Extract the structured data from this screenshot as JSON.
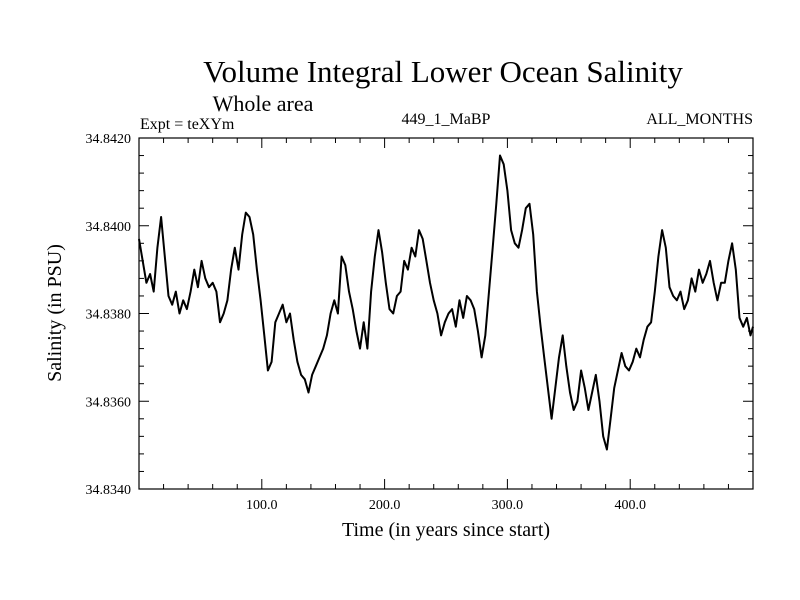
{
  "chart_data": {
    "type": "line",
    "title": "Volume Integral Lower Ocean Salinity",
    "subtitle": "Whole area",
    "annotations": {
      "left": "Expt = teXYm",
      "center": "449_1_MaBP",
      "right": "ALL_MONTHS"
    },
    "xlabel": "Time (in years since start)",
    "ylabel": "Salinity (in PSU)",
    "xlim": [
      0,
      500
    ],
    "ylim": [
      34.834,
      34.842
    ],
    "x_ticks": [
      100,
      200,
      300,
      400
    ],
    "x_tick_labels": [
      "100.0",
      "200.0",
      "300.0",
      "400.0"
    ],
    "y_ticks": [
      34.834,
      34.836,
      34.838,
      34.84,
      34.842
    ],
    "y_tick_labels": [
      "34.8340",
      "34.8360",
      "34.8380",
      "34.8400",
      "34.8420"
    ],
    "grid": false,
    "line_color": "#000000",
    "series": [
      {
        "x": [
          0,
          3,
          6,
          9,
          12,
          15,
          18,
          21,
          24,
          27,
          30,
          33,
          36,
          39,
          42,
          45,
          48,
          51,
          54,
          57,
          60,
          63,
          66,
          69,
          72,
          75,
          78,
          81,
          84,
          87,
          90,
          93,
          96,
          99,
          102,
          105,
          108,
          111,
          114,
          117,
          120,
          123,
          126,
          129,
          132,
          135,
          138,
          141,
          144,
          147,
          150,
          153,
          156,
          159,
          162,
          165,
          168,
          171,
          174,
          177,
          180,
          183,
          186,
          189,
          192,
          195,
          198,
          201,
          204,
          207,
          210,
          213,
          216,
          219,
          222,
          225,
          228,
          231,
          234,
          237,
          240,
          243,
          246,
          249,
          252,
          255,
          258,
          261,
          264,
          267,
          270,
          273,
          276,
          279,
          282,
          285,
          288,
          291,
          294,
          297,
          300,
          303,
          306,
          309,
          312,
          315,
          318,
          321,
          324,
          327,
          330,
          333,
          336,
          339,
          342,
          345,
          348,
          351,
          354,
          357,
          360,
          363,
          366,
          369,
          372,
          375,
          378,
          381,
          384,
          387,
          390,
          393,
          396,
          399,
          402,
          405,
          408,
          411,
          414,
          417,
          420,
          423,
          426,
          429,
          432,
          435,
          438,
          441,
          444,
          447,
          450,
          453,
          456,
          459,
          462,
          465,
          468,
          471,
          474,
          477,
          480,
          483,
          486,
          489,
          492,
          495,
          498,
          500
        ],
        "values": [
          34.8397,
          34.8392,
          34.8387,
          34.8389,
          34.8385,
          34.8395,
          34.8402,
          34.8393,
          34.8384,
          34.8382,
          34.8385,
          34.838,
          34.8383,
          34.8381,
          34.8385,
          34.839,
          34.8386,
          34.8392,
          34.8388,
          34.8386,
          34.8387,
          34.8385,
          34.8378,
          34.838,
          34.8383,
          34.839,
          34.8395,
          34.839,
          34.8398,
          34.8403,
          34.8402,
          34.8398,
          34.839,
          34.8383,
          34.8375,
          34.8367,
          34.8369,
          34.8378,
          34.838,
          34.8382,
          34.8378,
          34.838,
          34.8374,
          34.8369,
          34.8366,
          34.8365,
          34.8362,
          34.8366,
          34.8368,
          34.837,
          34.8372,
          34.8375,
          34.838,
          34.8383,
          34.838,
          34.8393,
          34.8391,
          34.8385,
          34.8381,
          34.8376,
          34.8372,
          34.8378,
          34.8372,
          34.8385,
          34.8393,
          34.8399,
          34.8394,
          34.8387,
          34.8381,
          34.838,
          34.8384,
          34.8385,
          34.8392,
          34.839,
          34.8395,
          34.8393,
          34.8399,
          34.8397,
          34.8392,
          34.8387,
          34.8383,
          34.838,
          34.8375,
          34.8378,
          34.838,
          34.8381,
          34.8377,
          34.8383,
          34.8379,
          34.8384,
          34.8383,
          34.8381,
          34.8376,
          34.837,
          34.8375,
          34.8385,
          34.8395,
          34.8405,
          34.8416,
          34.8414,
          34.8408,
          34.8399,
          34.8396,
          34.8395,
          34.8399,
          34.8404,
          34.8405,
          34.8398,
          34.8385,
          34.8377,
          34.837,
          34.8363,
          34.8356,
          34.8363,
          34.837,
          34.8375,
          34.8368,
          34.8362,
          34.8358,
          34.836,
          34.8367,
          34.8363,
          34.8358,
          34.8362,
          34.8366,
          34.836,
          34.8352,
          34.8349,
          34.8356,
          34.8363,
          34.8367,
          34.8371,
          34.8368,
          34.8367,
          34.8369,
          34.8372,
          34.837,
          34.8374,
          34.8377,
          34.8378,
          34.8385,
          34.8393,
          34.8399,
          34.8395,
          34.8386,
          34.8384,
          34.8383,
          34.8385,
          34.8381,
          34.8383,
          34.8388,
          34.8385,
          34.839,
          34.8387,
          34.8389,
          34.8392,
          34.8387,
          34.8383,
          34.8387,
          34.8387,
          34.8392,
          34.8396,
          34.839,
          34.8379,
          34.8377,
          34.8379,
          34.8375,
          34.8377
        ]
      }
    ]
  }
}
